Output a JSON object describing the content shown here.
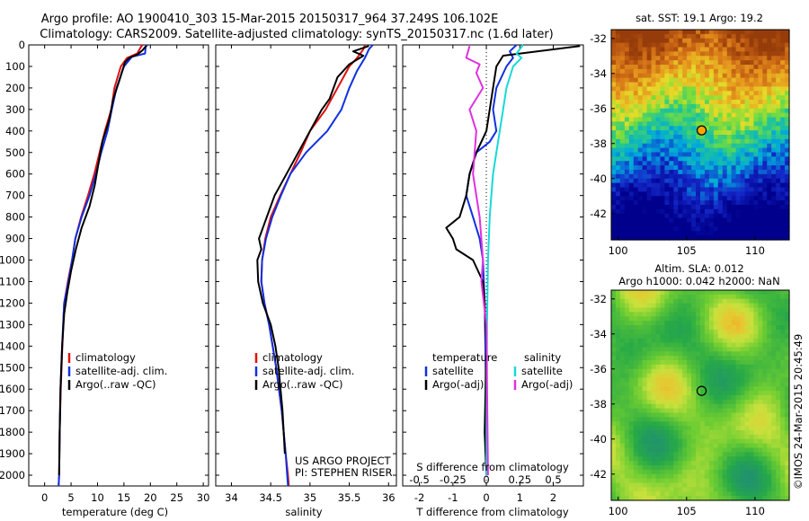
{
  "header": {
    "line1": "Argo profile: AO 1900410_303 15-Mar-2015 20150317_964 37.249S 106.102E",
    "line2": "Climatology: CARS2009. Satellite-adjusted climatology: synTS_20150317.nc (1.6d later)"
  },
  "credits": {
    "project": "US ARGO PROJECT",
    "pi": "PI: STEPHEN RISER",
    "stamp": "©IMOS 24-Mar-2015 20:45:49"
  },
  "colors": {
    "climatology": "#e01010",
    "satellite": "#1030e0",
    "argo": "#000000",
    "sal_satellite": "#18d8d8",
    "sal_argo": "#e030e0"
  },
  "chart_data": [
    {
      "type": "line",
      "id": "temperature",
      "xlabel": "temperature (deg C)",
      "ylabel": "",
      "xlim": [
        -3,
        31
      ],
      "ylim": [
        2050,
        0
      ],
      "xticks": [
        0,
        5,
        10,
        15,
        20,
        25,
        30
      ],
      "yticks": [
        0,
        100,
        200,
        300,
        400,
        500,
        600,
        700,
        800,
        900,
        1000,
        1100,
        1200,
        1300,
        1400,
        1500,
        1600,
        1700,
        1800,
        1900,
        2000
      ],
      "legend": [
        "climatology",
        "satellite-adj. clim.",
        "Argo(..raw -QC)"
      ],
      "legend_position": "bottom-center",
      "series": [
        {
          "name": "climatology",
          "color_key": "climatology",
          "x": [
            18.5,
            18.2,
            17.5,
            15.6,
            14.4,
            13.2,
            12.6,
            11.4,
            10.4,
            9.4,
            8.2,
            6.9,
            5.8,
            5.2,
            4.4,
            3.7,
            3.35,
            3.05,
            2.85,
            2.75,
            2.65
          ],
          "y": [
            0,
            10,
            40,
            60,
            100,
            200,
            300,
            400,
            500,
            600,
            700,
            800,
            900,
            1000,
            1100,
            1200,
            1400,
            1600,
            1800,
            2000,
            2050
          ]
        },
        {
          "name": "satellite-adj. clim.",
          "color_key": "satellite",
          "x": [
            19.4,
            19.1,
            19.0,
            16.5,
            15.0,
            13.6,
            12.7,
            11.9,
            10.7,
            9.7,
            8.5,
            7.0,
            5.8,
            5.2,
            4.5,
            3.7,
            3.3,
            3.0,
            2.85,
            2.75,
            2.65
          ],
          "y": [
            0,
            10,
            40,
            55,
            100,
            200,
            300,
            400,
            500,
            600,
            700,
            800,
            900,
            1000,
            1100,
            1200,
            1400,
            1600,
            1800,
            2000,
            2050
          ]
        },
        {
          "name": "Argo(..raw -QC)",
          "color_key": "argo",
          "x": [
            19.2,
            18.5,
            17.5,
            16.0,
            15.2,
            14.7,
            14.2,
            13.0,
            12.2,
            10.9,
            10.2,
            9.5,
            8.5,
            7.0,
            5.9,
            5.0,
            4.3,
            3.7,
            3.3,
            3.0,
            2.85,
            2.75
          ],
          "y": [
            5,
            25,
            45,
            60,
            80,
            120,
            160,
            250,
            350,
            450,
            550,
            650,
            750,
            850,
            950,
            1050,
            1150,
            1250,
            1400,
            1600,
            1800,
            2000
          ]
        }
      ]
    },
    {
      "type": "line",
      "id": "salinity",
      "xlabel": "salinity",
      "ylabel": "",
      "xlim": [
        33.8,
        36.1
      ],
      "ylim": [
        2050,
        0
      ],
      "xticks": [
        34,
        34.5,
        35,
        35.5,
        36
      ],
      "legend": [
        "climatology",
        "satellite-adj. clim.",
        "Argo(..raw -QC)"
      ],
      "legend_position": "bottom-center",
      "series": [
        {
          "name": "climatology",
          "color_key": "climatology",
          "x": [
            35.7,
            35.68,
            35.6,
            35.5,
            35.35,
            35.2,
            35.0,
            34.88,
            34.75,
            34.62,
            34.5,
            34.43,
            34.39,
            34.38,
            34.42,
            34.48,
            34.57,
            34.64,
            34.69,
            34.72,
            34.73
          ],
          "y": [
            0,
            20,
            60,
            100,
            200,
            300,
            400,
            500,
            600,
            700,
            800,
            900,
            1000,
            1100,
            1200,
            1300,
            1500,
            1700,
            1900,
            2000,
            2050
          ]
        },
        {
          "name": "satellite-adj. clim.",
          "color_key": "satellite",
          "x": [
            35.8,
            35.75,
            35.7,
            35.6,
            35.5,
            35.4,
            35.22,
            34.95,
            34.75,
            34.63,
            34.52,
            34.44,
            34.39,
            34.38,
            34.42,
            34.48,
            34.57,
            34.64,
            34.69,
            34.71,
            34.72
          ],
          "y": [
            0,
            20,
            60,
            120,
            200,
            300,
            400,
            500,
            600,
            700,
            800,
            900,
            1000,
            1100,
            1200,
            1300,
            1500,
            1700,
            1900,
            2000,
            2050
          ]
        },
        {
          "name": "Argo(..raw -QC)",
          "color_key": "argo",
          "x": [
            35.75,
            35.55,
            35.68,
            35.5,
            35.35,
            35.25,
            35.15,
            35.0,
            34.85,
            34.7,
            34.55,
            34.45,
            34.35,
            34.38,
            34.33,
            34.34,
            34.4,
            34.5,
            34.56,
            34.6,
            34.65,
            34.68
          ],
          "y": [
            5,
            30,
            50,
            90,
            150,
            250,
            300,
            400,
            500,
            600,
            700,
            800,
            900,
            950,
            1000,
            1100,
            1200,
            1300,
            1400,
            1500,
            1700,
            1900
          ]
        }
      ]
    },
    {
      "type": "line",
      "id": "difference",
      "xlabel": "T difference from climatology",
      "xlabel_top": "S difference from climatology",
      "xlim": [
        -2.5,
        2.9
      ],
      "ylim": [
        2050,
        0
      ],
      "xticks": [
        -2,
        -1,
        0,
        1,
        2
      ],
      "xticks_s_labels": [
        "-0.5",
        "-0.25",
        "0",
        "0.25",
        "0.5"
      ],
      "legend_titles": [
        "temperature",
        "salinity"
      ],
      "legend": [
        "satellite",
        "Argo(-adj)",
        "satellite",
        "Argo(-adj)"
      ],
      "legend_position": "bottom-center",
      "series": [
        {
          "name": "satellite",
          "group": "temperature",
          "color_key": "satellite",
          "x": [
            0.9,
            0.7,
            0.8,
            0.6,
            0.3,
            0.2,
            0.3,
            0.1,
            -0.3,
            -0.5,
            -0.6,
            -0.4,
            -0.2,
            -0.1,
            -0.05,
            -0.02,
            0
          ],
          "y": [
            0,
            30,
            60,
            100,
            200,
            300,
            400,
            450,
            500,
            600,
            700,
            800,
            900,
            1000,
            1200,
            1500,
            2000
          ]
        },
        {
          "name": "Argo(-adj)",
          "group": "temperature",
          "color_key": "argo",
          "x": [
            2.8,
            0.5,
            0.3,
            0.2,
            0.1,
            0.0,
            -0.3,
            -0.5,
            -0.6,
            -0.8,
            -1.2,
            -1.0,
            -0.9,
            -0.4,
            -0.1,
            -0.05,
            0.0,
            -0.05,
            0.0
          ],
          "y": [
            5,
            50,
            100,
            200,
            300,
            400,
            500,
            600,
            700,
            800,
            850,
            900,
            950,
            1000,
            1100,
            1200,
            1400,
            1800,
            2000
          ]
        },
        {
          "name": "satellite",
          "group": "salinity",
          "color_key": "sal_satellite",
          "x": [
            1.1,
            0.9,
            1.05,
            0.8,
            0.6,
            0.5,
            0.3,
            0.2,
            0.15,
            0.1,
            0.05,
            0.02,
            0.0
          ],
          "y": [
            0,
            40,
            60,
            100,
            200,
            300,
            500,
            600,
            700,
            800,
            1000,
            1300,
            2000
          ]
        },
        {
          "name": "Argo(-adj)",
          "group": "salinity",
          "color_key": "sal_argo",
          "x": [
            -0.5,
            -0.6,
            -0.2,
            -0.3,
            -0.1,
            -0.5,
            -0.3,
            -0.4,
            -0.2,
            -0.1,
            -0.15,
            0.0,
            0.05
          ],
          "y": [
            5,
            60,
            90,
            130,
            200,
            300,
            400,
            600,
            800,
            1000,
            1100,
            1300,
            2000
          ]
        }
      ]
    },
    {
      "type": "heatmap",
      "id": "sst_map",
      "title": "sat. SST: 19.1 Argo: 19.2",
      "xlim": [
        99.5,
        112.5
      ],
      "ylim": [
        -43.5,
        -31.5
      ],
      "xticks": [
        100,
        105,
        110
      ],
      "yticks": [
        -32,
        -34,
        -36,
        -38,
        -40,
        -42
      ],
      "marker": {
        "lon": 106.102,
        "lat": -37.249,
        "fill": "#ffa500"
      }
    },
    {
      "type": "heatmap",
      "id": "sla_map",
      "title": "Altim. SLA: 0.012",
      "subtitle": "Argo h1000: 0.042 h2000: NaN",
      "xlim": [
        99.5,
        112.5
      ],
      "ylim": [
        -43.5,
        -31.5
      ],
      "xticks": [
        100,
        105,
        110
      ],
      "yticks": [
        -32,
        -34,
        -36,
        -38,
        -40,
        -42
      ],
      "marker": {
        "lon": 106.102,
        "lat": -37.249,
        "fill": "none"
      }
    }
  ]
}
